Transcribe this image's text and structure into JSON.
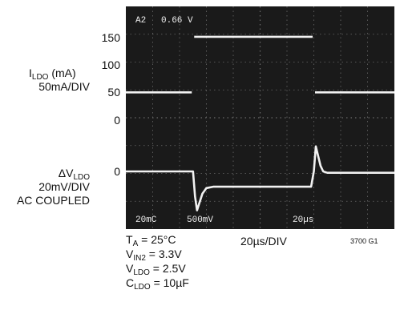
{
  "chart_data": {
    "type": "line",
    "screen_readouts": {
      "top_left_channel": "A2",
      "top_left_value": "0.66 V",
      "bottom_ch1_coupling": "20mC",
      "bottom_ch2_scale": "500mV",
      "bottom_timebase": "20µs"
    },
    "series": [
      {
        "name": "ILDO",
        "unit": "mA",
        "x": [
          0,
          50,
          50,
          140,
          140,
          200
        ],
        "values": [
          50,
          50,
          150,
          150,
          50,
          50
        ]
      },
      {
        "name": "ΔVLDO",
        "unit": "mV",
        "x": [
          0,
          50,
          51.5,
          53,
          55,
          57,
          60,
          65,
          80,
          100,
          138,
          140,
          141.5,
          143,
          145,
          147,
          150,
          155,
          170,
          200
        ],
        "values": [
          0,
          0,
          -18,
          -28,
          -22,
          -16,
          -12,
          -11,
          -11,
          -11,
          -11,
          0,
          18,
          12,
          4,
          0,
          -1,
          -1,
          -1,
          -1
        ]
      }
    ],
    "axes": {
      "ildo": {
        "label_main": "I",
        "label_sub": "LDO",
        "label_unit": " (mA)",
        "scale_label": "50mA/DIV",
        "ticks": [
          "150",
          "100",
          "50",
          "0"
        ]
      },
      "dvldo": {
        "label_main": "ΔV",
        "label_sub": "LDO",
        "scale_label": "20mV/DIV",
        "coupling_label": "AC COUPLED",
        "ticks": [
          "0"
        ]
      },
      "x": {
        "scale_label": "20µs/DIV",
        "range": [
          0,
          200
        ]
      }
    },
    "grid": true,
    "conditions": [
      {
        "main": "T",
        "sub": "A",
        "rest": " = 25°C"
      },
      {
        "main": "V",
        "sub": "IN2",
        "rest": " = 3.3V"
      },
      {
        "main": "V",
        "sub": "LDO",
        "rest": " = 2.5V"
      },
      {
        "main": "C",
        "sub": "LDO",
        "rest": " = 10µF"
      }
    ],
    "figure_id": "3700 G1"
  },
  "colors": {
    "trace": "#f2f2f2",
    "screen_bg": "#1a1a1a",
    "grid": "#6a6a6a"
  }
}
